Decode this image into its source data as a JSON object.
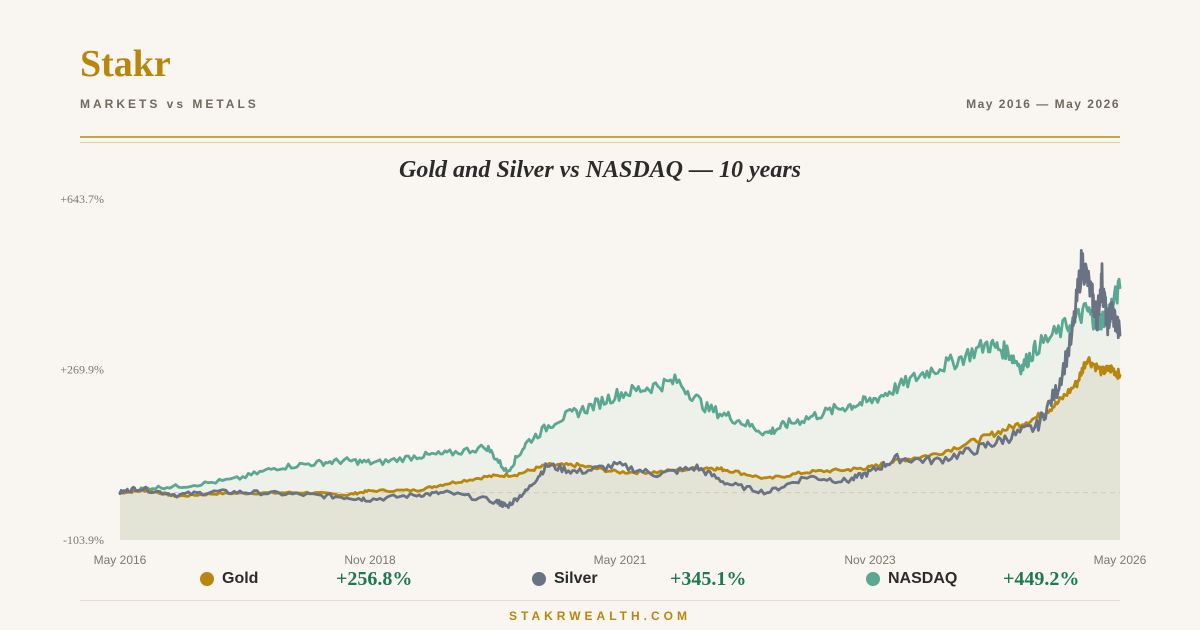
{
  "header": {
    "brand": "Stakr",
    "tagline": "MARKETS vs METALS",
    "date_range": "May 2016 — May 2026"
  },
  "footer": {
    "site": "STAKRWEALTH.COM"
  },
  "legend": [
    {
      "name": "Gold",
      "change": "+256.8%",
      "color": "#b8860b"
    },
    {
      "name": "Silver",
      "change": "+345.1%",
      "color": "#6a7383"
    },
    {
      "name": "NASDAQ",
      "change": "+449.2%",
      "color": "#5ba892"
    }
  ],
  "chart_data": {
    "type": "line",
    "title": "Gold and Silver vs NASDAQ — 10 years",
    "xlabel": "",
    "ylabel": "",
    "y_unit": "% change",
    "ylim": [
      -103.9,
      643.7
    ],
    "y_ticks": [
      "+643.7%",
      "+269.9%",
      "-103.9%"
    ],
    "y_tick_values": [
      643.7,
      269.9,
      -103.9
    ],
    "x_ticks": [
      "May 2016",
      "Nov 2018",
      "May 2021",
      "Nov 2023",
      "May 2026"
    ],
    "x_tick_values": [
      2016.33,
      2018.83,
      2021.33,
      2023.83,
      2026.33
    ],
    "xlim": [
      2016.33,
      2026.33
    ],
    "baseline": 0,
    "grid": false,
    "legend_position": "bottom",
    "series": [
      {
        "name": "Gold",
        "color": "#b8860b",
        "x": [
          2016.33,
          2016.6,
          2016.9,
          2017.3,
          2017.7,
          2018.2,
          2018.6,
          2018.83,
          2019.3,
          2019.6,
          2020.0,
          2020.3,
          2020.6,
          2020.9,
          2021.3,
          2021.7,
          2022.2,
          2022.4,
          2022.8,
          2023.2,
          2023.6,
          2023.83,
          2024.1,
          2024.5,
          2024.9,
          2025.2,
          2025.5,
          2025.7,
          2025.9,
          2026.0,
          2026.15,
          2026.25,
          2026.33
        ],
        "y": [
          0,
          5,
          -8,
          -2,
          -1,
          0,
          -5,
          4,
          5,
          20,
          35,
          40,
          60,
          60,
          45,
          45,
          55,
          50,
          30,
          45,
          50,
          55,
          70,
          85,
          115,
          140,
          165,
          195,
          240,
          295,
          265,
          272,
          256.8
        ]
      },
      {
        "name": "Silver",
        "color": "#6a7383",
        "x": [
          2016.33,
          2016.5,
          2016.9,
          2017.3,
          2017.7,
          2018.2,
          2018.6,
          2018.83,
          2019.3,
          2019.6,
          2020.1,
          2020.2,
          2020.4,
          2020.6,
          2020.9,
          2021.3,
          2021.7,
          2022.1,
          2022.4,
          2022.8,
          2023.2,
          2023.6,
          2023.83,
          2024.1,
          2024.5,
          2024.9,
          2025.2,
          2025.5,
          2025.7,
          2025.85,
          2025.95,
          2026.05,
          2026.1,
          2026.15,
          2026.2,
          2026.25,
          2026.33
        ],
        "y": [
          0,
          10,
          -5,
          2,
          0,
          -5,
          -10,
          -15,
          -5,
          0,
          -20,
          -30,
          5,
          60,
          45,
          60,
          40,
          55,
          20,
          0,
          35,
          25,
          45,
          75,
          70,
          95,
          120,
          145,
          225,
          340,
          510,
          430,
          380,
          470,
          370,
          400,
          345.1
        ]
      },
      {
        "name": "NASDAQ",
        "color": "#5ba892",
        "x": [
          2016.33,
          2016.6,
          2017.0,
          2017.5,
          2017.9,
          2018.3,
          2018.6,
          2018.9,
          2019.3,
          2019.6,
          2020.0,
          2020.2,
          2020.4,
          2020.7,
          2021.0,
          2021.3,
          2021.6,
          2021.9,
          2022.2,
          2022.5,
          2022.8,
          2023.0,
          2023.3,
          2023.6,
          2023.83,
          2024.1,
          2024.4,
          2024.7,
          2025.0,
          2025.2,
          2025.35,
          2025.5,
          2025.8,
          2026.0,
          2026.1,
          2026.2,
          2026.33
        ],
        "y": [
          0,
          10,
          15,
          30,
          55,
          65,
          70,
          65,
          80,
          85,
          100,
          45,
          110,
          160,
          185,
          215,
          230,
          245,
          185,
          160,
          130,
          150,
          170,
          190,
          200,
          230,
          265,
          290,
          325,
          310,
          275,
          320,
          365,
          400,
          370,
          390,
          449.2
        ]
      }
    ]
  }
}
